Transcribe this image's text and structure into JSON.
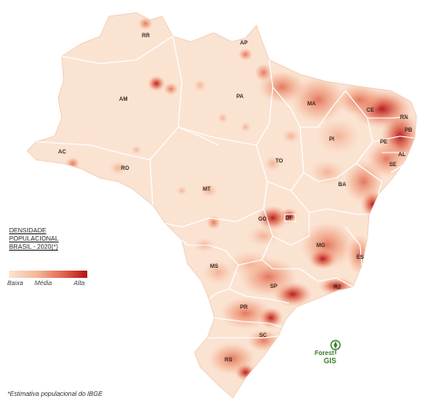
{
  "legend": {
    "title_line1": "DENSIDADE",
    "title_line2": "POPULACIONAL",
    "title_line3": "BRASIL - 2020(*)",
    "low": "Baixa",
    "mid": "Média",
    "high": "Alta",
    "colors": [
      "#fbe3d2",
      "#f4b89a",
      "#e0644a",
      "#b31218"
    ]
  },
  "states": [
    "RR",
    "AP",
    "AM",
    "PA",
    "MA",
    "CE",
    "RN",
    "PB",
    "PE",
    "AL",
    "SE",
    "PI",
    "AC",
    "RO",
    "TO",
    "BA",
    "MT",
    "GO",
    "DF",
    "MG",
    "ES",
    "MS",
    "SP",
    "RJ",
    "PR",
    "SC",
    "RS"
  ],
  "logo": {
    "word": "Forest",
    "suffix": "GIS"
  },
  "footnote": "*Estimativa populacional do IBGE",
  "colors": {
    "base": "#fbe3d2",
    "border": "#ffffff",
    "dark": "#b31218"
  }
}
